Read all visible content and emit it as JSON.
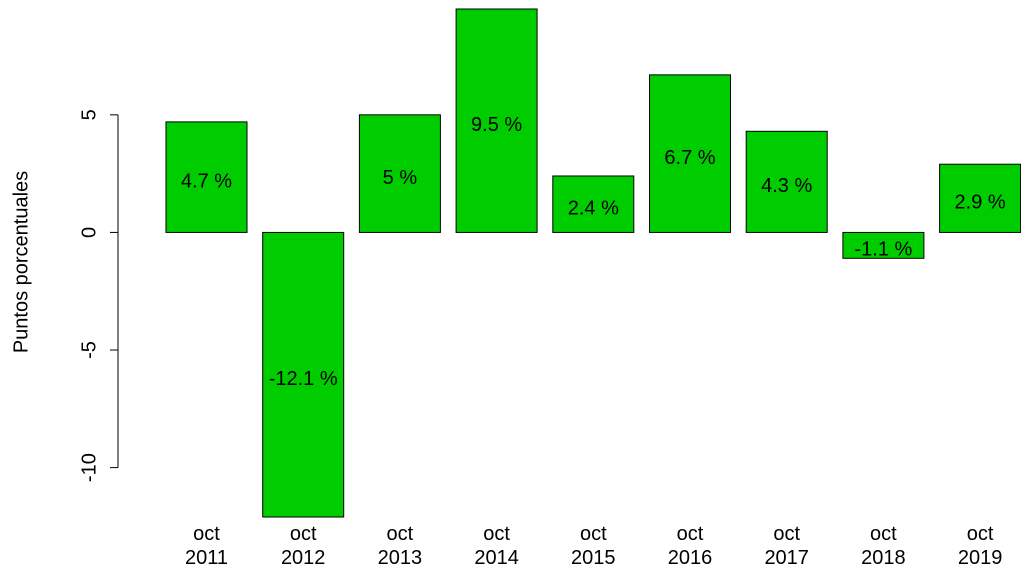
{
  "chart_data": {
    "type": "bar",
    "y_label": "Puntos porcentuales",
    "categories": [
      "oct\n2011",
      "oct\n2012",
      "oct\n2013",
      "oct\n2014",
      "oct\n2015",
      "oct\n2016",
      "oct\n2017",
      "oct\n2018",
      "oct\n2019"
    ],
    "values": [
      4.7,
      -12.1,
      5,
      9.5,
      2.4,
      6.7,
      4.3,
      -1.1,
      2.9
    ],
    "value_labels": [
      "4.7 %",
      "-12.1 %",
      "5 %",
      "9.5 %",
      "2.4 %",
      "6.7 %",
      "4.3 %",
      "-1.1 %",
      "2.9 %"
    ],
    "color": "#00cd00",
    "ylim": [
      -12.1,
      9.5
    ],
    "yticks": [
      -10,
      -5,
      0,
      5
    ]
  }
}
